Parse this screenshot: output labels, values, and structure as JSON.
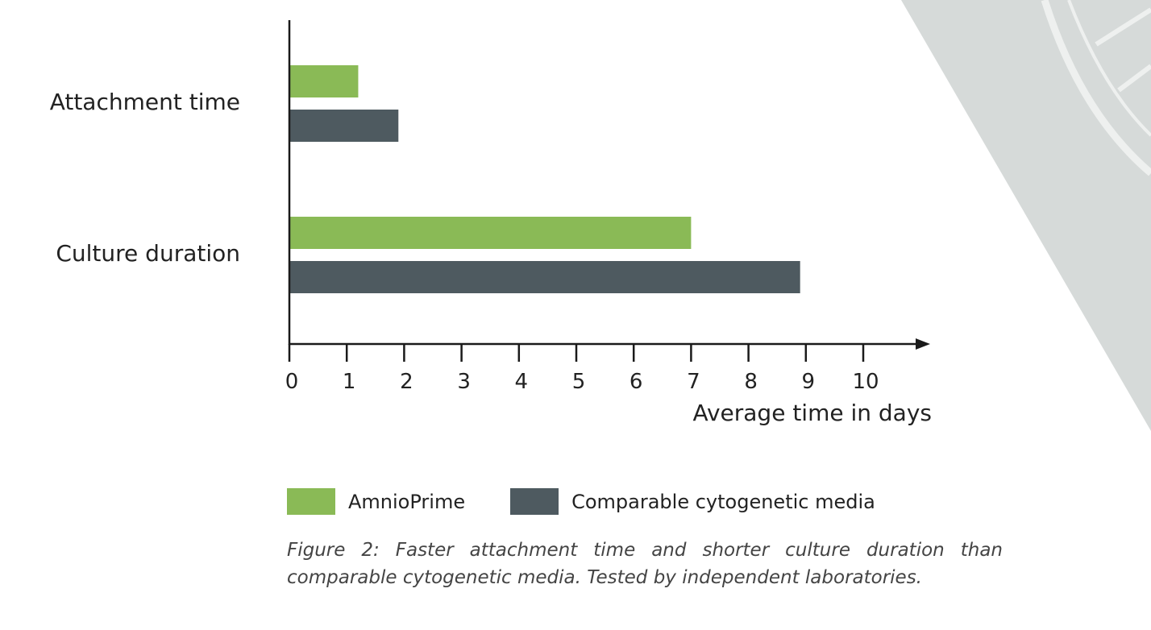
{
  "colors": {
    "series_1": "#8aba56",
    "series_2": "#4e5a60",
    "axis": "#1a1a1a",
    "background_wedge": "#d6dad9",
    "wedge_detail": "#eef0ef"
  },
  "chart_data": {
    "type": "bar",
    "orientation": "horizontal",
    "categories": [
      "Attachment time",
      "Culture duration"
    ],
    "series": [
      {
        "name": "AmnioPrime",
        "values": [
          1.2,
          7.0
        ]
      },
      {
        "name": "Comparable cytogenetic media",
        "values": [
          1.9,
          8.9
        ]
      }
    ],
    "xlabel": "Average time in days",
    "ylabel": "",
    "xlim": [
      0,
      10
    ],
    "xticks": [
      "0",
      "1",
      "2",
      "3",
      "4",
      "5",
      "6",
      "7",
      "8",
      "9",
      "10"
    ],
    "grid": false,
    "legend_position": "bottom"
  },
  "caption": "Figure 2: Faster attachment time and shorter culture duration than comparable cytogenetic media. Tested by independent laboratories."
}
